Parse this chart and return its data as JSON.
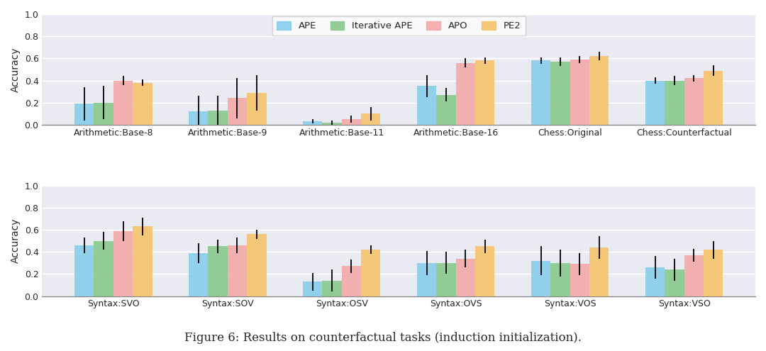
{
  "row1_categories": [
    "Arithmetic:Base-8",
    "Arithmetic:Base-9",
    "Arithmetic:Base-11",
    "Arithmetic:Base-16",
    "Chess:Original",
    "Chess:Counterfactual"
  ],
  "row2_categories": [
    "Syntax:SVO",
    "Syntax:SOV",
    "Syntax:OSV",
    "Syntax:OVS",
    "Syntax:VOS",
    "Syntax:VSO"
  ],
  "methods": [
    "APE",
    "Iterative APE",
    "APO",
    "PE2"
  ],
  "colors": [
    "#87ceeb",
    "#88c98a",
    "#f4a9a8",
    "#f5c46a"
  ],
  "row1_values": [
    [
      0.19,
      0.2,
      0.4,
      0.38
    ],
    [
      0.12,
      0.13,
      0.24,
      0.29
    ],
    [
      0.03,
      0.02,
      0.05,
      0.1
    ],
    [
      0.35,
      0.27,
      0.56,
      0.58
    ],
    [
      0.58,
      0.57,
      0.59,
      0.62
    ],
    [
      0.4,
      0.4,
      0.42,
      0.49
    ]
  ],
  "row1_errors": [
    [
      0.15,
      0.15,
      0.04,
      0.03
    ],
    [
      0.14,
      0.13,
      0.18,
      0.16
    ],
    [
      0.02,
      0.02,
      0.03,
      0.06
    ],
    [
      0.1,
      0.06,
      0.04,
      0.03
    ],
    [
      0.03,
      0.04,
      0.03,
      0.04
    ],
    [
      0.03,
      0.04,
      0.03,
      0.05
    ]
  ],
  "row2_values": [
    [
      0.46,
      0.5,
      0.59,
      0.63
    ],
    [
      0.39,
      0.45,
      0.46,
      0.56
    ],
    [
      0.13,
      0.14,
      0.27,
      0.42
    ],
    [
      0.3,
      0.3,
      0.34,
      0.45
    ],
    [
      0.32,
      0.3,
      0.29,
      0.44
    ],
    [
      0.26,
      0.24,
      0.37,
      0.42
    ]
  ],
  "row2_errors": [
    [
      0.07,
      0.08,
      0.09,
      0.08
    ],
    [
      0.09,
      0.06,
      0.07,
      0.04
    ],
    [
      0.08,
      0.1,
      0.06,
      0.04
    ],
    [
      0.11,
      0.1,
      0.08,
      0.06
    ],
    [
      0.13,
      0.12,
      0.1,
      0.1
    ],
    [
      0.1,
      0.1,
      0.06,
      0.08
    ]
  ],
  "ylabel": "Accuracy",
  "ylim": [
    0.0,
    1.0
  ],
  "yticks": [
    0.0,
    0.2,
    0.4,
    0.6,
    0.8,
    1.0
  ],
  "caption": "Figure 6: Results on counterfactual tasks (induction initialization).",
  "bar_width": 0.17,
  "bg_color": "#eaeaf2"
}
